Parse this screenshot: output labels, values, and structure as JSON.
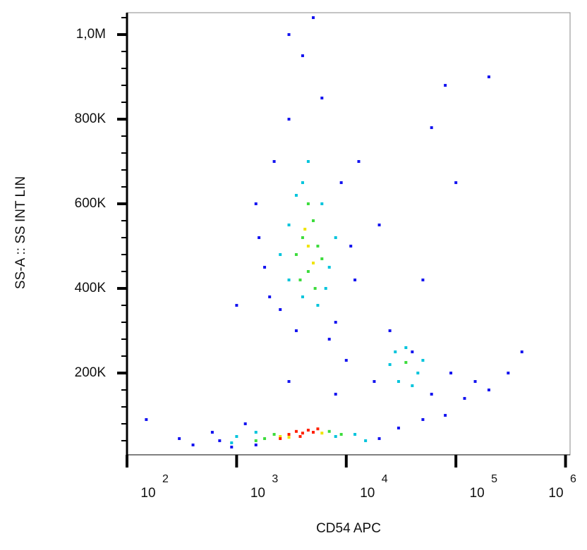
{
  "chart_data": {
    "type": "scatter",
    "x_label": "CD54 APC",
    "y_label": "SS-A :: SS INT LIN",
    "xscale": "log",
    "xlim": [
      100,
      1100000
    ],
    "ylim": [
      6700,
      1051700
    ],
    "xticks": [
      {
        "value": 100,
        "label": "10",
        "exponent": "2"
      },
      {
        "value": 1000,
        "label": "10",
        "exponent": "3"
      },
      {
        "value": 10000,
        "label": "10",
        "exponent": "4"
      },
      {
        "value": 100000,
        "label": "10",
        "exponent": "5"
      },
      {
        "value": 1000000,
        "label": "10",
        "exponent": "6"
      }
    ],
    "yticks": [
      {
        "value": 200000,
        "label": "200K"
      },
      {
        "value": 400000,
        "label": "400K"
      },
      {
        "value": 600000,
        "label": "600K"
      },
      {
        "value": 800000,
        "label": "800K"
      },
      {
        "value": 1000000,
        "label": "1,0M"
      }
    ],
    "yminorticks": [
      40000,
      80000,
      120000,
      160000,
      240000,
      280000,
      320000,
      360000,
      440000,
      480000,
      520000,
      560000,
      640000,
      680000,
      720000,
      760000,
      840000,
      880000,
      920000,
      960000,
      1040000
    ],
    "series": [
      {
        "color": "#1414f0",
        "x": [
          1500,
          1800,
          2200,
          2500,
          3000,
          3500,
          8000,
          9000,
          11000,
          12000,
          6000,
          4000,
          3000,
          5000,
          2000,
          13000,
          7000,
          1600,
          700,
          900,
          1200,
          1500,
          20000,
          30000,
          50000,
          80000,
          600,
          400,
          300,
          150,
          18000,
          25000,
          60000,
          90000,
          150000,
          200000,
          40000,
          120000,
          60000,
          100000,
          200000,
          80000,
          400000,
          20000,
          50000,
          1000,
          3000,
          8000,
          10000,
          300000
        ],
        "values": [
          600000,
          450000,
          700000,
          350000,
          800000,
          300000,
          320000,
          650000,
          500000,
          420000,
          850000,
          950000,
          1000000,
          1040000,
          380000,
          700000,
          280000,
          520000,
          40000,
          25000,
          80000,
          30000,
          45000,
          70000,
          90000,
          100000,
          60000,
          30000,
          45000,
          90000,
          180000,
          300000,
          150000,
          200000,
          180000,
          160000,
          250000,
          140000,
          780000,
          650000,
          900000,
          880000,
          250000,
          550000,
          420000,
          360000,
          180000,
          150000,
          230000,
          200000
        ]
      },
      {
        "color": "#00c4dc",
        "x": [
          2500,
          3000,
          3500,
          4000,
          4500,
          5500,
          6000,
          7000,
          8000,
          3000,
          6500,
          4000,
          1000,
          1500,
          8000,
          12000,
          15000,
          900,
          25000,
          30000,
          35000,
          45000,
          50000,
          28000,
          40000
        ],
        "values": [
          480000,
          420000,
          620000,
          380000,
          700000,
          360000,
          600000,
          450000,
          520000,
          550000,
          400000,
          650000,
          50000,
          60000,
          50000,
          55000,
          40000,
          35000,
          220000,
          180000,
          260000,
          200000,
          230000,
          250000,
          170000
        ]
      },
      {
        "color": "#3cdc3c",
        "x": [
          3500,
          4000,
          4500,
          5000,
          5500,
          4500,
          6000,
          3800,
          5200,
          1800,
          2200,
          7000,
          9000,
          1500,
          35000
        ],
        "values": [
          480000,
          520000,
          440000,
          560000,
          500000,
          600000,
          470000,
          420000,
          400000,
          45000,
          55000,
          62000,
          55000,
          40000,
          225000
        ]
      },
      {
        "color": "#f0e400",
        "x": [
          4500,
          5000,
          4200,
          2500,
          6000,
          3000
        ],
        "values": [
          500000,
          460000,
          540000,
          50000,
          58000,
          48000
        ]
      },
      {
        "color": "#ff2000",
        "x": [
          3000,
          3500,
          4000,
          4500,
          5000,
          2500,
          5500,
          3800
        ],
        "values": [
          55000,
          62000,
          58000,
          65000,
          60000,
          45000,
          68000,
          50000
        ]
      }
    ]
  }
}
